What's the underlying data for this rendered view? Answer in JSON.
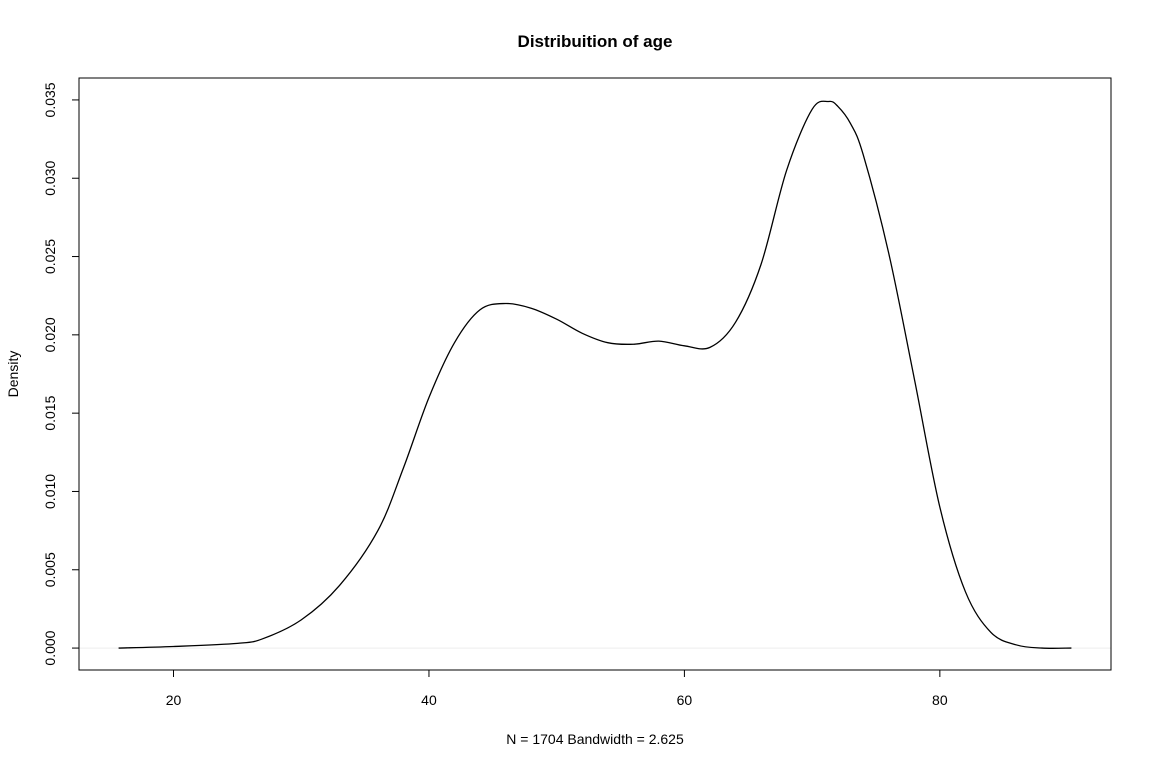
{
  "chart_data": {
    "type": "line",
    "title": "Distribuition of age",
    "xlabel": "N = 1704   Bandwidth = 2.625",
    "ylabel": "Density",
    "xlim": [
      12.6,
      93.4
    ],
    "ylim": [
      -0.0014,
      0.0364
    ],
    "x_ticks": [
      20,
      40,
      60,
      80
    ],
    "x_tick_labels": [
      "20",
      "40",
      "60",
      "80"
    ],
    "y_ticks": [
      0.0,
      0.005,
      0.01,
      0.015,
      0.02,
      0.025,
      0.03,
      0.035
    ],
    "y_tick_labels": [
      "0.000",
      "0.005",
      "0.010",
      "0.015",
      "0.020",
      "0.025",
      "0.030",
      "0.035"
    ],
    "grid": false,
    "baseline": 0,
    "series": [
      {
        "color": "#000000",
        "x": [
          15.7,
          20,
          25,
          27,
          30,
          33,
          36,
          38,
          40,
          42,
          44,
          46,
          48,
          50,
          52,
          54,
          56,
          58,
          60,
          62,
          64,
          66,
          68,
          70,
          71.3,
          72,
          73,
          74,
          76,
          78,
          80,
          82,
          84,
          86,
          88,
          90.3
        ],
        "y": [
          0.0,
          0.0001,
          0.0003,
          0.0006,
          0.0018,
          0.004,
          0.0075,
          0.0115,
          0.016,
          0.0195,
          0.0216,
          0.022,
          0.0217,
          0.021,
          0.0201,
          0.0195,
          0.0194,
          0.0196,
          0.0193,
          0.0192,
          0.0208,
          0.0245,
          0.0305,
          0.0344,
          0.0349,
          0.0346,
          0.0335,
          0.0315,
          0.0252,
          0.0172,
          0.009,
          0.0036,
          0.001,
          0.0002,
          0.0,
          0.0
        ]
      }
    ]
  }
}
